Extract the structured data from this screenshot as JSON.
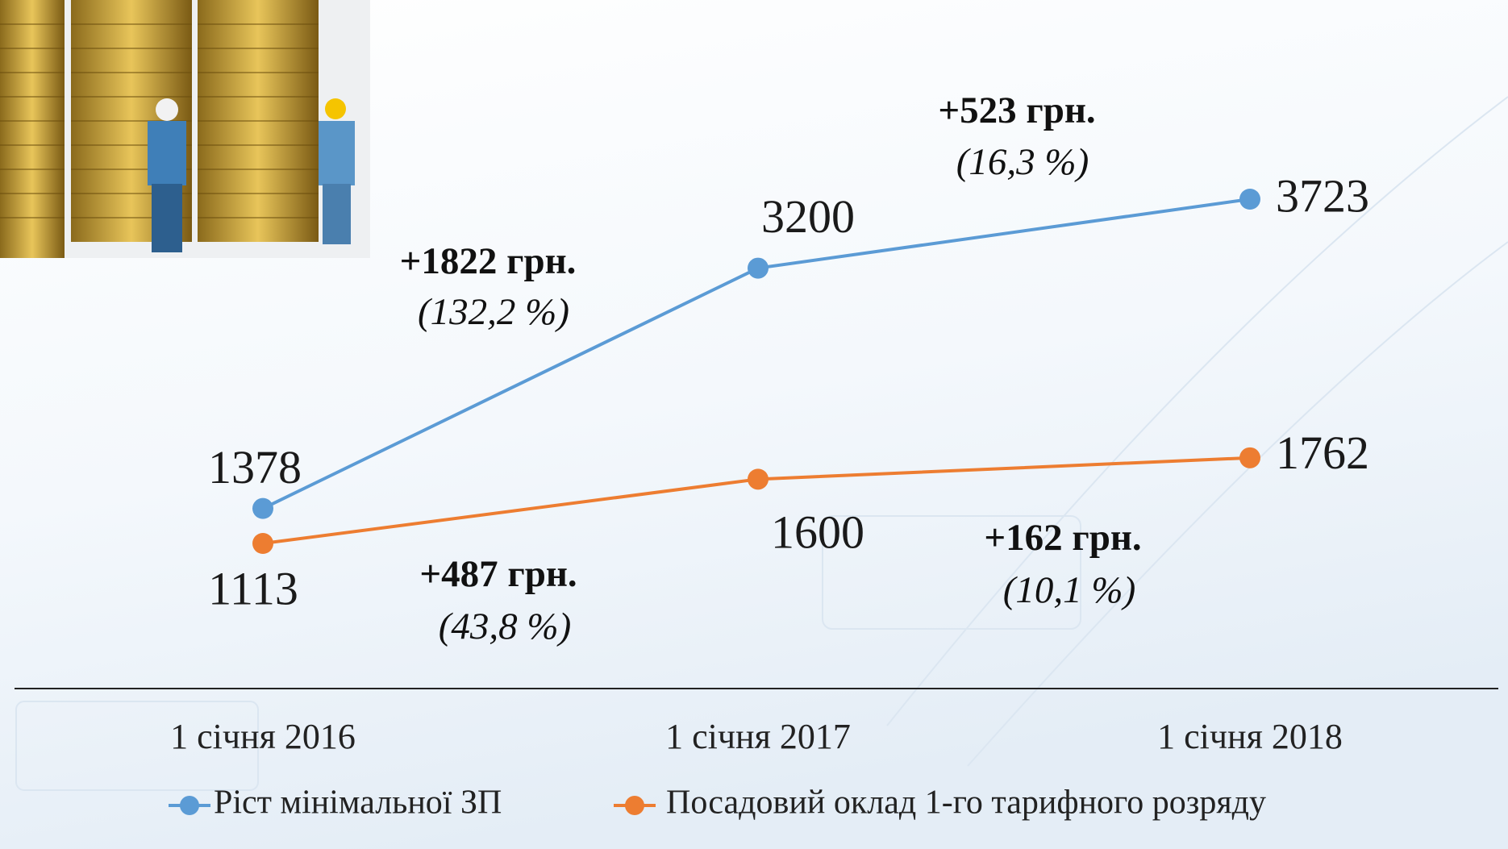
{
  "chart_data": {
    "type": "line",
    "categories": [
      "1 січня 2016",
      "1 січня 2017",
      "1 січня 2018"
    ],
    "series": [
      {
        "name": "Ріст мінімальної ЗП",
        "color": "#5b9bd5",
        "values": [
          1378,
          3200,
          3723
        ]
      },
      {
        "name": "Посадовий оклад 1-го тарифного розряду",
        "color": "#ed7d31",
        "values": [
          1113,
          1600,
          1762
        ]
      }
    ],
    "annotations": [
      {
        "text": "+1822 грн.",
        "subtext": "(132,2 %)"
      },
      {
        "text": "+523 грн.",
        "subtext": "(16,3 %)"
      },
      {
        "text": "+487 грн.",
        "subtext": "(43,8 %)"
      },
      {
        "text": "+162 грн.",
        "subtext": "(10,1 %)"
      }
    ]
  }
}
